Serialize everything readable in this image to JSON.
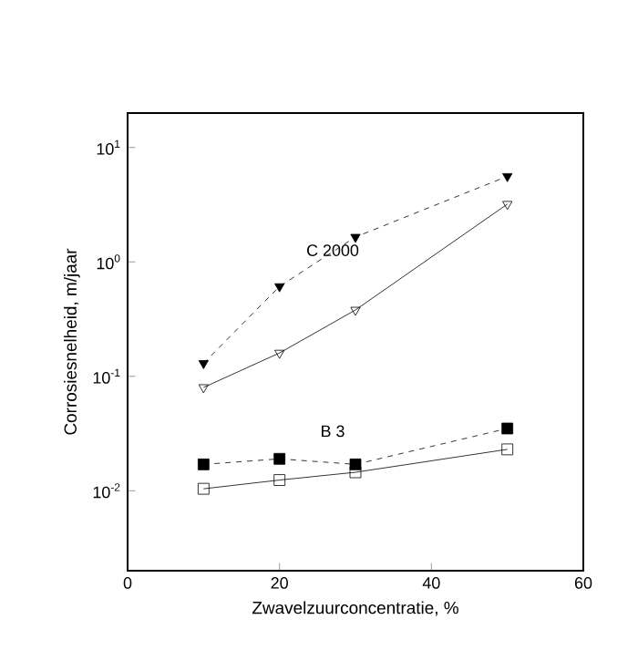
{
  "chart_data": {
    "type": "line",
    "xlabel": "Zwavelzuurconcentratie, %",
    "ylabel": "Corrosiesnelheid, m/jaar",
    "log": "y",
    "grid": false,
    "x": [
      10,
      20,
      30,
      50
    ],
    "xlim": [
      0,
      60
    ],
    "xticks": [
      0,
      20,
      40,
      60
    ],
    "ylim": [
      0.002,
      20
    ],
    "yticks": [
      {
        "value": 0.01,
        "label": "10$^{-2}$"
      },
      {
        "value": 0.1,
        "label": "10$^{-1}$"
      },
      {
        "value": 1,
        "label": "10$^{0}$"
      },
      {
        "value": 10,
        "label": "10$^{1}$"
      }
    ],
    "series": [
      {
        "color": "#000000",
        "values": [
          0.13,
          0.61,
          1.65,
          5.6
        ],
        "marker": "triangle",
        "line_style": "dashed"
      },
      {
        "color": "#000000",
        "values": [
          0.08,
          0.16,
          0.38,
          3.2
        ],
        "marker": "triangle",
        "line_style": "solid"
      },
      {
        "color": "#000000",
        "values": [
          0.017,
          0.019,
          0.017,
          0.035
        ],
        "marker": "square",
        "line_style": "dashed"
      },
      {
        "color": "#000000",
        "values": [
          0.0104,
          0.0124,
          0.0145,
          0.023
        ],
        "marker": "square",
        "line_style": "solid"
      }
    ],
    "annotations": [
      "C 2000",
      "B 3"
    ]
  }
}
